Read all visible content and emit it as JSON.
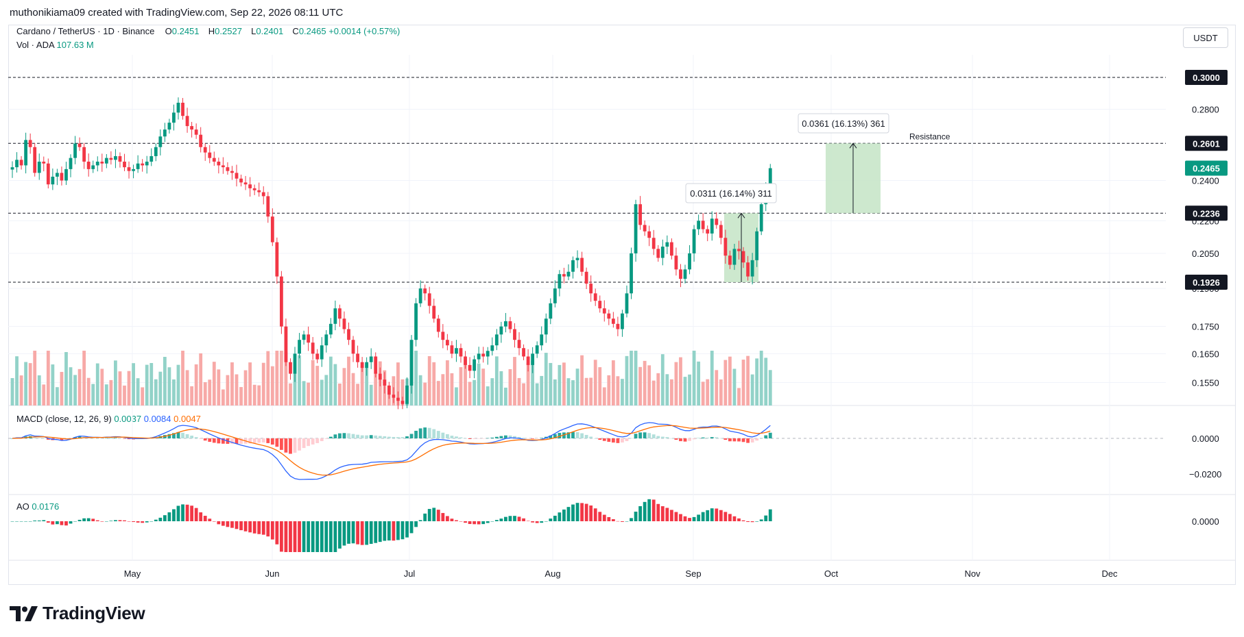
{
  "header": {
    "credit": "muthonikiama09 created with TradingView.com, Sep 22, 2026 08:11 UTC"
  },
  "legend": {
    "symbol": "Cardano / TetherUS · 1D · Binance",
    "o_label": "O",
    "o_value": "0.2451",
    "h_label": "H",
    "h_value": "0.2527",
    "l_label": "L",
    "l_value": "0.2401",
    "c_label": "C",
    "c_value": "0.2465",
    "change": "+0.0014 (+0.57%)",
    "vol_label": "Vol · ADA",
    "vol_value": "107.63 M"
  },
  "currency_button": "USDT",
  "macd_legend": {
    "label": "MACD (close, 12, 26, 9)",
    "hist": "0.0037",
    "macd": "0.0084",
    "signal": "0.0047"
  },
  "ao_legend": {
    "label": "AO",
    "value": "0.0176"
  },
  "brand": {
    "name": "TradingView"
  },
  "colors": {
    "up": "#089981",
    "down": "#f23645",
    "vol_up": "#92d2c8",
    "vol_down": "#f7a9a7",
    "macd": "#2962ff",
    "signal": "#ff6d00",
    "measure_fill": "#c8e6c9"
  },
  "chart_data": [
    {
      "type": "candlestick",
      "symbol": "ADA/USDT",
      "x_ticks": [
        "May",
        "Jun",
        "Jul",
        "Aug",
        "Sep",
        "Oct",
        "Nov",
        "Dec"
      ],
      "y_ticks": [
        "0.2800",
        "0.2400",
        "0.2200",
        "0.2050",
        "0.1900",
        "0.1750",
        "0.1650",
        "0.1550"
      ],
      "y_scale": "log",
      "price_levels": [
        {
          "value": "0.3000",
          "label": "0.3000"
        },
        {
          "value": "0.2601",
          "label": "0.2601"
        },
        {
          "value": "0.2236",
          "label": "0.2236"
        },
        {
          "value": "0.1926",
          "label": "0.1926"
        }
      ],
      "last_price": "0.2465",
      "annotations": [
        {
          "text": "Resistance"
        },
        {
          "text": "0.0361 (16.13%) 361"
        },
        {
          "text": "0.0311 (16.14%) 311"
        }
      ],
      "closes": [
        0.247,
        0.251,
        0.248,
        0.262,
        0.258,
        0.244,
        0.25,
        0.249,
        0.238,
        0.242,
        0.244,
        0.24,
        0.246,
        0.252,
        0.26,
        0.258,
        0.25,
        0.246,
        0.248,
        0.25,
        0.249,
        0.252,
        0.251,
        0.253,
        0.25,
        0.247,
        0.245,
        0.246,
        0.249,
        0.248,
        0.25,
        0.253,
        0.258,
        0.264,
        0.268,
        0.272,
        0.278,
        0.284,
        0.276,
        0.27,
        0.268,
        0.265,
        0.258,
        0.255,
        0.252,
        0.25,
        0.248,
        0.247,
        0.245,
        0.244,
        0.241,
        0.239,
        0.238,
        0.236,
        0.235,
        0.234,
        0.232,
        0.222,
        0.21,
        0.195,
        0.175,
        0.162,
        0.158,
        0.165,
        0.17,
        0.172,
        0.169,
        0.165,
        0.163,
        0.168,
        0.172,
        0.176,
        0.182,
        0.178,
        0.174,
        0.17,
        0.165,
        0.162,
        0.16,
        0.162,
        0.164,
        0.158,
        0.156,
        0.154,
        0.151,
        0.15,
        0.149,
        0.148,
        0.154,
        0.17,
        0.184,
        0.19,
        0.188,
        0.183,
        0.178,
        0.173,
        0.17,
        0.168,
        0.165,
        0.167,
        0.164,
        0.161,
        0.159,
        0.163,
        0.165,
        0.164,
        0.166,
        0.168,
        0.172,
        0.175,
        0.177,
        0.174,
        0.17,
        0.167,
        0.164,
        0.161,
        0.165,
        0.168,
        0.172,
        0.178,
        0.184,
        0.19,
        0.196,
        0.195,
        0.197,
        0.202,
        0.203,
        0.197,
        0.192,
        0.188,
        0.185,
        0.182,
        0.18,
        0.178,
        0.176,
        0.174,
        0.18,
        0.188,
        0.205,
        0.228,
        0.218,
        0.215,
        0.212,
        0.207,
        0.203,
        0.208,
        0.21,
        0.204,
        0.198,
        0.194,
        0.198,
        0.205,
        0.216,
        0.22,
        0.216,
        0.214,
        0.221,
        0.218,
        0.212,
        0.204,
        0.2,
        0.207,
        0.206,
        0.201,
        0.195,
        0.202,
        0.215,
        0.228,
        0.236,
        0.2465
      ],
      "volume_label": "Vol · ADA 107.63 M",
      "macd": {
        "macd_last": "0.0084",
        "signal_last": "0.0047",
        "hist_last": "0.0037",
        "y_ticks": [
          "0.0000",
          "−0.0200"
        ]
      },
      "ao": {
        "last": "0.0176",
        "y_ticks": [
          "0.0000"
        ]
      }
    }
  ]
}
